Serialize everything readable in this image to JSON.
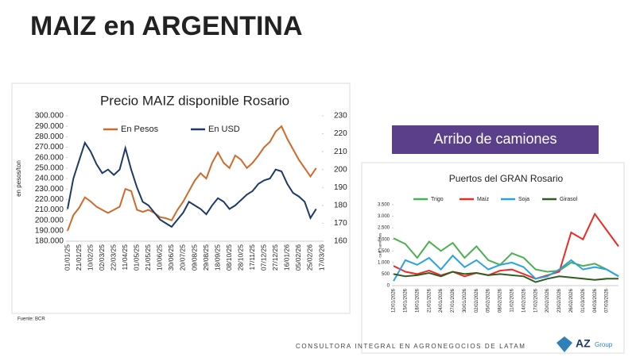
{
  "title": "MAIZ en ARGENTINA",
  "banner": "Arribo de camiones",
  "source": "Fuente: BCR",
  "footer": "CONSULTORA INTEGRAL EN AGRONEGOCIOS DE LATAM",
  "logo": "AZ",
  "logo_sub": "Group",
  "chart_data": [
    {
      "type": "line",
      "title": "Precio MAIZ disponible Rosario",
      "y_label": "en pesos/ton",
      "categories": [
        "01/01/25",
        null,
        "21/01/25",
        null,
        "10/02/25",
        null,
        "02/03/25",
        null,
        "22/03/25",
        null,
        "11/04/25",
        null,
        "01/05/25",
        null,
        "21/05/25",
        null,
        "10/06/25",
        null,
        "30/06/25",
        null,
        "20/07/25",
        null,
        "09/08/25",
        null,
        "29/08/25",
        null,
        "18/09/25",
        null,
        "08/10/25",
        null,
        "28/10/25",
        null,
        "17/11/25",
        null,
        "07/12/25",
        null,
        "27/12/25",
        null,
        "16/01/26",
        null,
        "05/02/26",
        null,
        "25/02/26",
        null,
        "17/03/26"
      ],
      "series": [
        {
          "name": "En Pesos",
          "color": "#d06a2a",
          "values": [
            190000,
            205000,
            212000,
            222000,
            218000,
            213000,
            210000,
            207000,
            210000,
            213000,
            230000,
            228000,
            210000,
            208000,
            210000,
            207000,
            203000,
            202000,
            200000,
            210000,
            218000,
            228000,
            238000,
            245000,
            240000,
            255000,
            265000,
            255000,
            250000,
            262000,
            258000,
            250000,
            255000,
            262000,
            270000,
            275000,
            285000,
            290000,
            278000,
            268000,
            258000,
            250000,
            242000,
            250000,
            null
          ]
        },
        {
          "name": "En USD",
          "color": "#1f3a68",
          "axis": "y2",
          "values": [
            178,
            195,
            205,
            215,
            210,
            203,
            198,
            200,
            197,
            200,
            212,
            200,
            190,
            182,
            180,
            176,
            172,
            170,
            168,
            172,
            176,
            182,
            180,
            178,
            175,
            180,
            184,
            182,
            178,
            180,
            183,
            186,
            188,
            192,
            194,
            195,
            200,
            199,
            192,
            187,
            185,
            182,
            173,
            178,
            null
          ]
        }
      ],
      "ylim": [
        180000,
        300000
      ],
      "yticks": [
        {
          "value": 180000,
          "label": "180.000"
        },
        {
          "value": 190000,
          "label": "190.000"
        },
        {
          "value": 200000,
          "label": "200.000"
        },
        {
          "value": 210000,
          "label": "210.000"
        },
        {
          "value": 220000,
          "label": "220.000"
        },
        {
          "value": 230000,
          "label": "230.000"
        },
        {
          "value": 240000,
          "label": "240.000"
        },
        {
          "value": 250000,
          "label": "250.000"
        },
        {
          "value": 260000,
          "label": "260.000"
        },
        {
          "value": 270000,
          "label": "270.000"
        },
        {
          "value": 280000,
          "label": "280.000"
        },
        {
          "value": 290000,
          "label": "290.000"
        },
        {
          "value": 300000,
          "label": "300.000"
        }
      ],
      "y2lim": [
        160,
        230
      ],
      "y2ticks": [
        160,
        170,
        180,
        190,
        200,
        210,
        220,
        230
      ],
      "grid": false
    },
    {
      "type": "line",
      "title": "Puertos del GRAN Rosario",
      "y_label": "cant camiones",
      "categories": [
        "12/01/2026",
        "15/01/2026",
        "18/01/2026",
        "21/01/2026",
        "24/01/2026",
        "27/01/2026",
        "30/01/2026",
        "02/02/2026",
        "05/02/2026",
        "08/02/2026",
        "11/02/2026",
        "14/02/2026",
        "17/02/2026",
        "20/02/2026",
        "23/02/2026",
        "26/02/2026",
        "01/03/2026",
        "04/03/2026",
        "07/03/2026",
        null
      ],
      "series": [
        {
          "name": "Trigo",
          "color": "#4caf50",
          "values": [
            2050,
            1800,
            1200,
            1900,
            1500,
            1850,
            1200,
            1700,
            1100,
            900,
            1400,
            1200,
            700,
            600,
            650,
            1000,
            850,
            950,
            700,
            400
          ]
        },
        {
          "name": "Maíz",
          "color": "#ee2a24",
          "values": [
            850,
            600,
            500,
            650,
            450,
            600,
            400,
            550,
            450,
            650,
            700,
            500,
            300,
            450,
            600,
            2300,
            2000,
            3100,
            2400,
            1700
          ]
        },
        {
          "name": "Soja",
          "color": "#29a3e0",
          "values": [
            200,
            1100,
            900,
            1200,
            700,
            1300,
            800,
            1100,
            700,
            900,
            1000,
            800,
            300,
            400,
            700,
            1100,
            700,
            800,
            700,
            400
          ]
        },
        {
          "name": "Girasol",
          "color": "#2e5e1e",
          "values": [
            500,
            400,
            450,
            550,
            400,
            600,
            500,
            550,
            450,
            500,
            450,
            400,
            150,
            300,
            400,
            350,
            300,
            250,
            300,
            300
          ]
        }
      ],
      "ylim": [
        0,
        3500
      ],
      "yticks": [
        0,
        500,
        {
          "value": 1000,
          "label": "1.000"
        },
        {
          "value": 1500,
          "label": "1.500"
        },
        {
          "value": 2000,
          "label": "2.000"
        },
        {
          "value": 2500,
          "label": "2.500"
        },
        {
          "value": 3000,
          "label": "3.000"
        },
        {
          "value": 3500,
          "label": "3.500"
        }
      ],
      "grid": false
    }
  ]
}
